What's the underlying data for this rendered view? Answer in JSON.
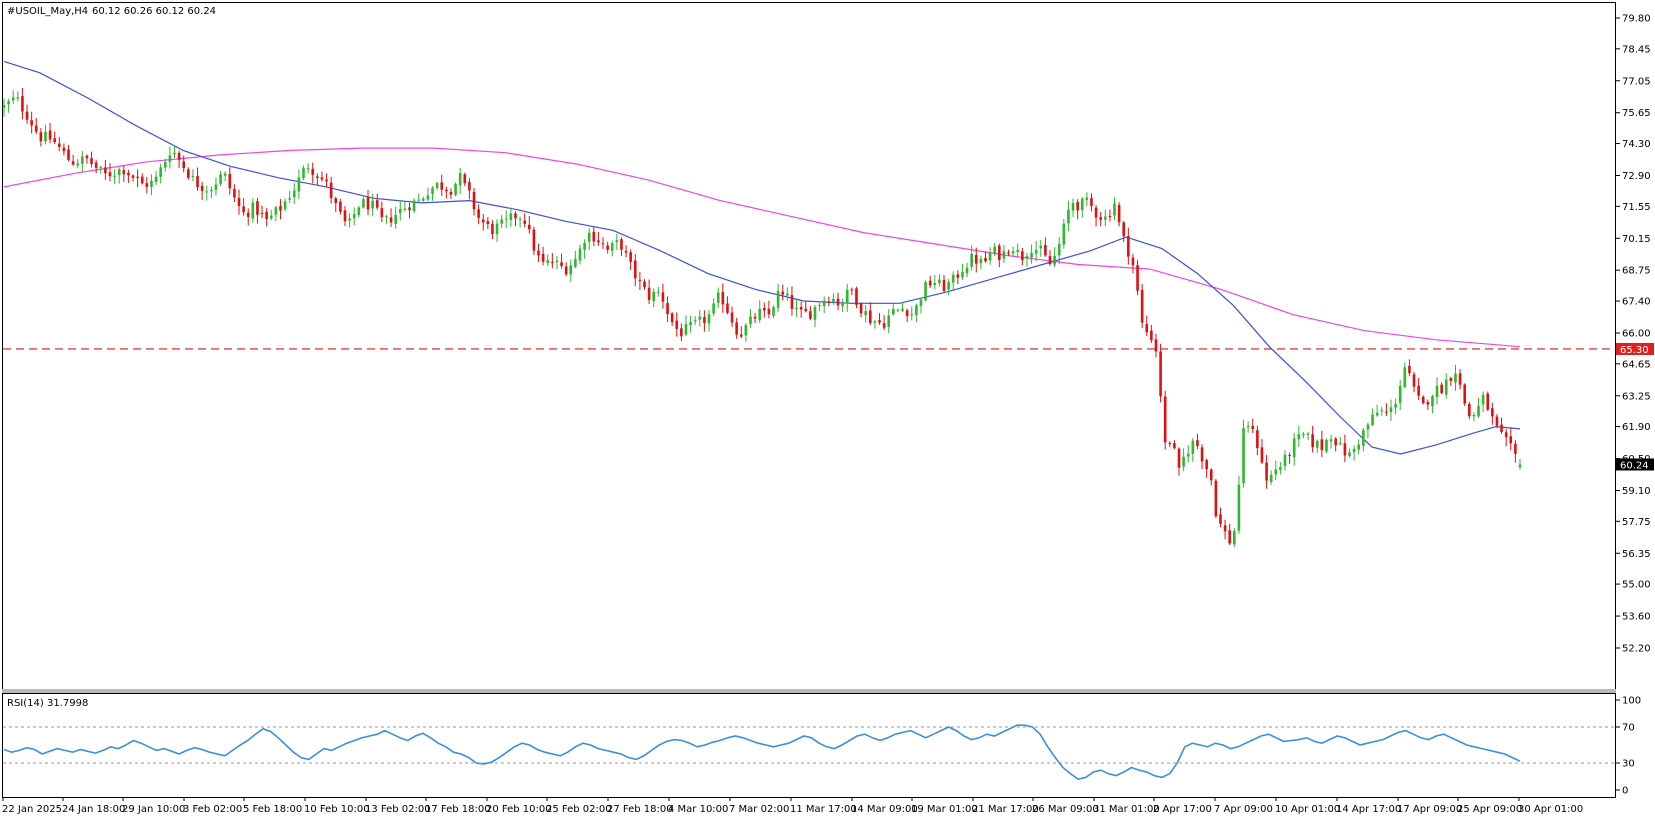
{
  "header": {
    "symbol": "#USOIL_May,H4",
    "ohlc": "60.12 60.26 60.12 60.24"
  },
  "rsi_header": "RSI(14) 31.7998",
  "colors": {
    "bull": "#2eb82e",
    "bear": "#e01010",
    "ma_fast": "#3b4fe0",
    "ma_slow": "#ee44ee",
    "level_line": "#e04040",
    "rsi_line": "#3a8fe0",
    "level_marker": "#e02020",
    "price_marker": "#000000"
  },
  "chart_data": [
    {
      "type": "candlestick",
      "title": "#USOIL_May,H4",
      "timeframe": "H4",
      "last_ohlc": {
        "open": 60.12,
        "high": 60.26,
        "low": 60.12,
        "close": 60.24
      },
      "ylim": [
        52.2,
        80.5
      ],
      "y_ticks": [
        "79.80",
        "78.45",
        "77.05",
        "75.65",
        "74.30",
        "72.90",
        "71.55",
        "70.15",
        "68.75",
        "67.40",
        "66.00",
        "64.65",
        "63.25",
        "61.90",
        "60.50",
        "59.10",
        "57.75",
        "56.35",
        "55.00",
        "53.60",
        "52.20"
      ],
      "x_ticks": [
        "22 Jan 2025",
        "24 Jan 18:00",
        "29 Jan 10:00",
        "3 Feb 02:00",
        "5 Feb 18:00",
        "10 Feb 10:00",
        "13 Feb 02:00",
        "17 Feb 18:00",
        "20 Feb 10:00",
        "25 Feb 02:00",
        "27 Feb 18:00",
        "4 Mar 10:00",
        "7 Mar 02:00",
        "11 Mar 17:00",
        "14 Mar 09:00",
        "19 Mar 01:00",
        "21 Mar 17:00",
        "26 Mar 09:00",
        "31 Mar 01:00",
        "2 Apr 17:00",
        "7 Apr 09:00",
        "10 Apr 01:00",
        "14 Apr 17:00",
        "17 Apr 09:00",
        "25 Apr 09:00",
        "30 Apr 01:00"
      ],
      "horizontal_level": {
        "value": 65.3,
        "label": "65.30"
      },
      "current_price": {
        "value": 60.24,
        "label": "60.24"
      },
      "close_path": [
        {
          "x": 0,
          "y": 75.9
        },
        {
          "x": 0.5,
          "y": 76.3
        },
        {
          "x": 1.0,
          "y": 75.5
        },
        {
          "x": 1.5,
          "y": 74.6
        },
        {
          "x": 2.0,
          "y": 74.5
        },
        {
          "x": 2.8,
          "y": 73.5
        },
        {
          "x": 3.5,
          "y": 73.6
        },
        {
          "x": 4.2,
          "y": 72.9
        },
        {
          "x": 5.0,
          "y": 73.2
        },
        {
          "x": 5.8,
          "y": 72.5
        },
        {
          "x": 6.3,
          "y": 72.6
        },
        {
          "x": 7.0,
          "y": 74.1
        },
        {
          "x": 7.4,
          "y": 73.5
        },
        {
          "x": 8.0,
          "y": 72.6
        },
        {
          "x": 8.6,
          "y": 72.3
        },
        {
          "x": 9.2,
          "y": 73.0
        },
        {
          "x": 9.6,
          "y": 72.0
        },
        {
          "x": 10.0,
          "y": 71.2
        },
        {
          "x": 10.5,
          "y": 71.5
        },
        {
          "x": 11.0,
          "y": 70.9
        },
        {
          "x": 11.6,
          "y": 71.5
        },
        {
          "x": 12.2,
          "y": 72.4
        },
        {
          "x": 12.7,
          "y": 73.4
        },
        {
          "x": 13.1,
          "y": 73.0
        },
        {
          "x": 13.5,
          "y": 72.5
        },
        {
          "x": 14.0,
          "y": 71.3
        },
        {
          "x": 14.4,
          "y": 70.6
        },
        {
          "x": 14.9,
          "y": 71.7
        },
        {
          "x": 15.4,
          "y": 71.6
        },
        {
          "x": 15.9,
          "y": 70.8
        },
        {
          "x": 16.4,
          "y": 71.2
        },
        {
          "x": 16.9,
          "y": 71.6
        },
        {
          "x": 17.4,
          "y": 71.8
        },
        {
          "x": 17.8,
          "y": 72.3
        },
        {
          "x": 18.2,
          "y": 72.5
        },
        {
          "x": 18.7,
          "y": 72.3
        },
        {
          "x": 19.1,
          "y": 72.8
        },
        {
          "x": 19.5,
          "y": 72.0
        },
        {
          "x": 19.9,
          "y": 71.0
        },
        {
          "x": 20.4,
          "y": 70.5
        },
        {
          "x": 21.0,
          "y": 70.8
        },
        {
          "x": 21.5,
          "y": 71.2
        },
        {
          "x": 21.8,
          "y": 71.0
        },
        {
          "x": 22.1,
          "y": 70.0
        },
        {
          "x": 22.5,
          "y": 69.0
        },
        {
          "x": 23.0,
          "y": 69.1
        },
        {
          "x": 23.5,
          "y": 68.8
        },
        {
          "x": 24.0,
          "y": 69.3
        },
        {
          "x": 24.4,
          "y": 70.4
        },
        {
          "x": 24.8,
          "y": 70.2
        },
        {
          "x": 25.3,
          "y": 69.6
        },
        {
          "x": 25.8,
          "y": 70.0
        },
        {
          "x": 26.2,
          "y": 69.0
        },
        {
          "x": 26.6,
          "y": 68.2
        },
        {
          "x": 27.0,
          "y": 67.6
        },
        {
          "x": 27.5,
          "y": 67.8
        },
        {
          "x": 27.9,
          "y": 66.6
        },
        {
          "x": 28.3,
          "y": 66.0
        },
        {
          "x": 28.7,
          "y": 66.2
        },
        {
          "x": 29.2,
          "y": 66.5
        },
        {
          "x": 29.6,
          "y": 66.8
        },
        {
          "x": 30.0,
          "y": 67.7
        },
        {
          "x": 30.4,
          "y": 66.8
        },
        {
          "x": 30.8,
          "y": 65.9
        },
        {
          "x": 31.2,
          "y": 66.4
        },
        {
          "x": 31.6,
          "y": 66.9
        },
        {
          "x": 32.0,
          "y": 66.7
        },
        {
          "x": 32.4,
          "y": 67.7
        },
        {
          "x": 32.8,
          "y": 67.5
        },
        {
          "x": 33.3,
          "y": 66.8
        },
        {
          "x": 33.8,
          "y": 66.9
        },
        {
          "x": 34.2,
          "y": 67.4
        },
        {
          "x": 34.6,
          "y": 67.6
        },
        {
          "x": 35.0,
          "y": 67.3
        },
        {
          "x": 35.5,
          "y": 67.9
        },
        {
          "x": 35.9,
          "y": 67.1
        },
        {
          "x": 36.3,
          "y": 66.6
        },
        {
          "x": 36.8,
          "y": 66.4
        },
        {
          "x": 37.2,
          "y": 66.9
        },
        {
          "x": 37.7,
          "y": 67.1
        },
        {
          "x": 38.1,
          "y": 66.8
        },
        {
          "x": 38.5,
          "y": 67.9
        },
        {
          "x": 38.9,
          "y": 68.3
        },
        {
          "x": 39.3,
          "y": 68.0
        },
        {
          "x": 39.7,
          "y": 68.2
        },
        {
          "x": 40.1,
          "y": 68.8
        },
        {
          "x": 40.6,
          "y": 69.3
        },
        {
          "x": 41.0,
          "y": 69.0
        },
        {
          "x": 41.4,
          "y": 69.6
        },
        {
          "x": 41.8,
          "y": 69.4
        },
        {
          "x": 42.2,
          "y": 69.9
        },
        {
          "x": 42.6,
          "y": 69.3
        },
        {
          "x": 43.0,
          "y": 69.8
        },
        {
          "x": 43.4,
          "y": 69.6
        },
        {
          "x": 43.8,
          "y": 69.0
        },
        {
          "x": 44.1,
          "y": 69.5
        },
        {
          "x": 44.4,
          "y": 70.6
        },
        {
          "x": 44.7,
          "y": 71.8
        },
        {
          "x": 45.0,
          "y": 71.6
        },
        {
          "x": 45.4,
          "y": 71.7
        },
        {
          "x": 45.8,
          "y": 71.2
        },
        {
          "x": 46.2,
          "y": 71.0
        },
        {
          "x": 46.5,
          "y": 71.8
        },
        {
          "x": 46.8,
          "y": 70.3
        },
        {
          "x": 47.1,
          "y": 69.6
        },
        {
          "x": 47.4,
          "y": 68.6
        },
        {
          "x": 47.6,
          "y": 66.5
        },
        {
          "x": 47.9,
          "y": 66.0
        },
        {
          "x": 48.2,
          "y": 65.7
        },
        {
          "x": 48.4,
          "y": 64.0
        },
        {
          "x": 48.6,
          "y": 61.0
        },
        {
          "x": 48.9,
          "y": 61.4
        },
        {
          "x": 49.2,
          "y": 59.8
        },
        {
          "x": 49.5,
          "y": 60.8
        },
        {
          "x": 49.9,
          "y": 61.3
        },
        {
          "x": 50.3,
          "y": 60.3
        },
        {
          "x": 50.6,
          "y": 59.5
        },
        {
          "x": 50.8,
          "y": 57.9
        },
        {
          "x": 51.1,
          "y": 57.3
        },
        {
          "x": 51.4,
          "y": 56.8
        },
        {
          "x": 51.6,
          "y": 57.6
        },
        {
          "x": 51.8,
          "y": 60.5
        },
        {
          "x": 52.0,
          "y": 62.3
        },
        {
          "x": 52.3,
          "y": 61.6
        },
        {
          "x": 52.6,
          "y": 60.9
        },
        {
          "x": 52.9,
          "y": 59.4
        },
        {
          "x": 53.2,
          "y": 60.0
        },
        {
          "x": 53.6,
          "y": 60.3
        },
        {
          "x": 54.0,
          "y": 61.1
        },
        {
          "x": 54.4,
          "y": 61.5
        },
        {
          "x": 54.8,
          "y": 61.2
        },
        {
          "x": 55.2,
          "y": 61.0
        },
        {
          "x": 55.6,
          "y": 61.6
        },
        {
          "x": 56.0,
          "y": 60.9
        },
        {
          "x": 56.4,
          "y": 60.6
        },
        {
          "x": 56.8,
          "y": 61.4
        },
        {
          "x": 57.2,
          "y": 62.1
        },
        {
          "x": 57.6,
          "y": 62.6
        },
        {
          "x": 58.0,
          "y": 62.4
        },
        {
          "x": 58.3,
          "y": 63.1
        },
        {
          "x": 58.7,
          "y": 64.6
        },
        {
          "x": 59.0,
          "y": 63.6
        },
        {
          "x": 59.4,
          "y": 62.7
        },
        {
          "x": 59.8,
          "y": 63.4
        },
        {
          "x": 60.2,
          "y": 63.6
        },
        {
          "x": 60.5,
          "y": 64.0
        },
        {
          "x": 60.8,
          "y": 64.4
        },
        {
          "x": 61.1,
          "y": 63.2
        },
        {
          "x": 61.4,
          "y": 62.3
        },
        {
          "x": 61.7,
          "y": 62.6
        },
        {
          "x": 62.0,
          "y": 63.2
        },
        {
          "x": 62.3,
          "y": 62.3
        },
        {
          "x": 62.6,
          "y": 61.6
        },
        {
          "x": 62.9,
          "y": 61.2
        },
        {
          "x": 63.2,
          "y": 60.8
        },
        {
          "x": 63.5,
          "y": 60.24
        }
      ],
      "ma_fast_path": [
        {
          "x": 0,
          "y": 77.9
        },
        {
          "x": 1.5,
          "y": 77.4
        },
        {
          "x": 3.5,
          "y": 76.3
        },
        {
          "x": 5.5,
          "y": 75.1
        },
        {
          "x": 7.5,
          "y": 74.0
        },
        {
          "x": 9.5,
          "y": 73.3
        },
        {
          "x": 11.5,
          "y": 72.8
        },
        {
          "x": 13.5,
          "y": 72.4
        },
        {
          "x": 15.5,
          "y": 71.9
        },
        {
          "x": 17.5,
          "y": 71.7
        },
        {
          "x": 19.5,
          "y": 71.8
        },
        {
          "x": 21.5,
          "y": 71.4
        },
        {
          "x": 23.5,
          "y": 70.9
        },
        {
          "x": 25.5,
          "y": 70.5
        },
        {
          "x": 27.5,
          "y": 69.6
        },
        {
          "x": 29.5,
          "y": 68.6
        },
        {
          "x": 31.5,
          "y": 67.9
        },
        {
          "x": 33.5,
          "y": 67.4
        },
        {
          "x": 35.5,
          "y": 67.3
        },
        {
          "x": 37.5,
          "y": 67.3
        },
        {
          "x": 39.5,
          "y": 67.8
        },
        {
          "x": 41.5,
          "y": 68.4
        },
        {
          "x": 43.5,
          "y": 69.0
        },
        {
          "x": 45.5,
          "y": 69.6
        },
        {
          "x": 47.0,
          "y": 70.2
        },
        {
          "x": 48.5,
          "y": 69.7
        },
        {
          "x": 50.0,
          "y": 68.6
        },
        {
          "x": 51.5,
          "y": 67.2
        },
        {
          "x": 53.0,
          "y": 65.4
        },
        {
          "x": 54.5,
          "y": 63.9
        },
        {
          "x": 56.0,
          "y": 62.3
        },
        {
          "x": 57.3,
          "y": 61.0
        },
        {
          "x": 58.5,
          "y": 60.7
        },
        {
          "x": 60.0,
          "y": 61.1
        },
        {
          "x": 61.5,
          "y": 61.6
        },
        {
          "x": 62.5,
          "y": 61.9
        },
        {
          "x": 63.5,
          "y": 61.8
        }
      ],
      "ma_slow_path": [
        {
          "x": 0,
          "y": 72.4
        },
        {
          "x": 3,
          "y": 73.0
        },
        {
          "x": 6,
          "y": 73.5
        },
        {
          "x": 9,
          "y": 73.8
        },
        {
          "x": 12,
          "y": 74.0
        },
        {
          "x": 15,
          "y": 74.1
        },
        {
          "x": 18,
          "y": 74.1
        },
        {
          "x": 21,
          "y": 73.9
        },
        {
          "x": 24,
          "y": 73.4
        },
        {
          "x": 27,
          "y": 72.7
        },
        {
          "x": 30,
          "y": 71.8
        },
        {
          "x": 33,
          "y": 71.1
        },
        {
          "x": 36,
          "y": 70.4
        },
        {
          "x": 39,
          "y": 69.9
        },
        {
          "x": 42,
          "y": 69.4
        },
        {
          "x": 45,
          "y": 69.0
        },
        {
          "x": 48,
          "y": 68.8
        },
        {
          "x": 51,
          "y": 67.9
        },
        {
          "x": 54,
          "y": 66.8
        },
        {
          "x": 57,
          "y": 66.1
        },
        {
          "x": 60,
          "y": 65.7
        },
        {
          "x": 63.5,
          "y": 65.4
        }
      ]
    },
    {
      "type": "line",
      "title": "RSI(14) 31.7998",
      "ylim": [
        0,
        100
      ],
      "y_ticks": [
        "100",
        "70",
        "30",
        "0"
      ],
      "levels": [
        70,
        30
      ],
      "last_value": 31.7998,
      "series": [
        {
          "values": [
            45,
            42,
            44,
            47,
            45,
            40,
            43,
            46,
            44,
            42,
            45,
            43,
            41,
            44,
            48,
            46,
            50,
            55,
            52,
            48,
            44,
            46,
            43,
            40,
            44,
            47,
            45,
            42,
            40,
            38,
            44,
            50,
            55,
            62,
            68,
            65,
            58,
            50,
            42,
            36,
            34,
            40,
            46,
            44,
            48,
            52,
            55,
            58,
            60,
            62,
            66,
            62,
            58,
            55,
            60,
            63,
            58,
            52,
            48,
            42,
            40,
            36,
            30,
            29,
            31,
            36,
            42,
            48,
            52,
            50,
            45,
            42,
            40,
            38,
            42,
            48,
            52,
            50,
            46,
            44,
            42,
            40,
            36,
            34,
            38,
            44,
            50,
            54,
            56,
            55,
            52,
            48,
            50,
            53,
            55,
            58,
            60,
            58,
            55,
            52,
            50,
            48,
            50,
            52,
            56,
            60,
            58,
            52,
            48,
            46,
            50,
            55,
            60,
            62,
            58,
            55,
            58,
            62,
            64,
            66,
            62,
            58,
            62,
            66,
            70,
            66,
            60,
            56,
            58,
            62,
            60,
            64,
            68,
            72,
            72,
            70,
            62,
            48,
            36,
            25,
            18,
            12,
            14,
            20,
            22,
            18,
            16,
            20,
            25,
            22,
            20,
            16,
            14,
            18,
            30,
            48,
            52,
            50,
            48,
            52,
            50,
            46,
            48,
            52,
            56,
            60,
            62,
            58,
            54,
            55,
            56,
            58,
            54,
            52,
            56,
            60,
            58,
            54,
            50,
            52,
            54,
            56,
            60,
            64,
            66,
            62,
            58,
            56,
            60,
            62,
            58,
            54,
            50,
            48,
            46,
            44,
            42,
            40,
            36,
            32
          ]
        }
      ]
    }
  ]
}
